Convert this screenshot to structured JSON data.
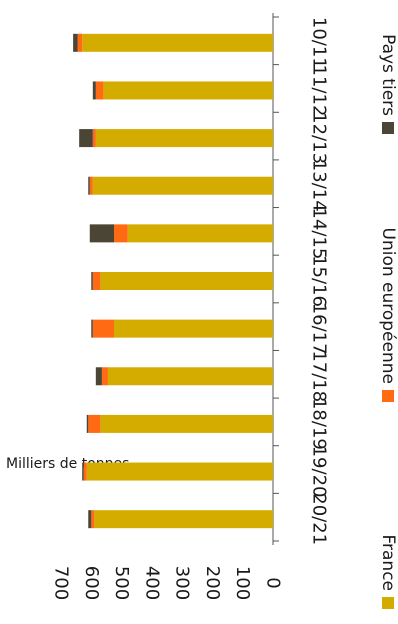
{
  "chart_data": {
    "type": "bar",
    "stacked": true,
    "orientation": "rotated-90-clockwise",
    "ylabel": "Milliers de tonnes",
    "ylim": [
      0,
      700
    ],
    "yticks": [
      0,
      100,
      200,
      300,
      400,
      500,
      600,
      700
    ],
    "grid": false,
    "legend_position": "bottom",
    "categories": [
      "10/11",
      "11/12",
      "12/13",
      "13/14",
      "14/15",
      "15/16",
      "16/17",
      "17/18",
      "18/19",
      "19/20",
      "20/21"
    ],
    "series": [
      {
        "name": "France",
        "color": "#d4ac00",
        "values": [
          630,
          560,
          585,
          595,
          480,
          570,
          525,
          545,
          570,
          615,
          590
        ]
      },
      {
        "name": "Union européenne",
        "color": "#ff6a13",
        "values": [
          15,
          25,
          10,
          10,
          45,
          25,
          70,
          20,
          40,
          10,
          10
        ]
      },
      {
        "name": "Pays tiers",
        "color": "#4a4535",
        "values": [
          15,
          10,
          45,
          5,
          80,
          5,
          5,
          20,
          5,
          5,
          10
        ]
      }
    ]
  }
}
